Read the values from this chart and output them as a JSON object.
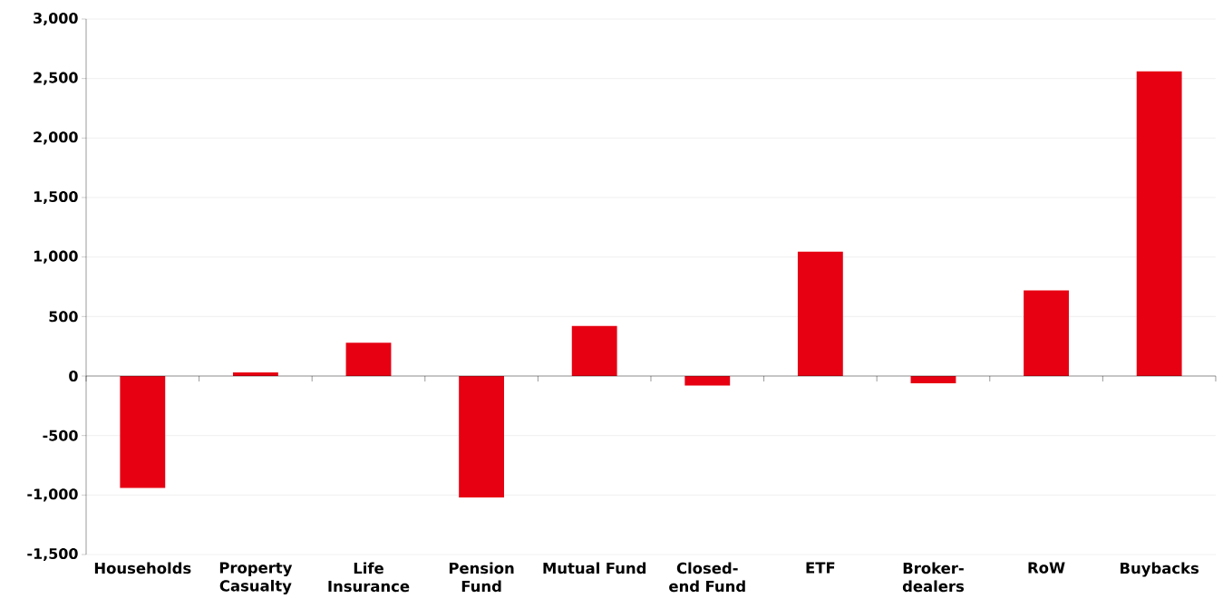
{
  "chart_data": {
    "type": "bar",
    "categories": [
      "Households",
      "Property Casualty",
      "Life Insurance",
      "Pension Fund",
      "Mutual Fund",
      "Closed-end Fund",
      "ETF",
      "Broker-dealers",
      "RoW",
      "Buybacks"
    ],
    "values": [
      -940,
      30,
      280,
      -1020,
      420,
      -80,
      1045,
      -60,
      720,
      2560
    ],
    "color": "#e60012",
    "ylim": [
      -1500,
      3000
    ],
    "yticks": [
      {
        "value": -1500,
        "label": "-1,500"
      },
      {
        "value": -1000,
        "label": "-1,000"
      },
      -500,
      0,
      500,
      {
        "value": 1000,
        "label": "1,000"
      },
      {
        "value": 1500,
        "label": "1,500"
      },
      {
        "value": 2000,
        "label": "2,000"
      },
      {
        "value": 2500,
        "label": "2,500"
      },
      {
        "value": 3000,
        "label": "3,000"
      }
    ],
    "grid": "y"
  }
}
